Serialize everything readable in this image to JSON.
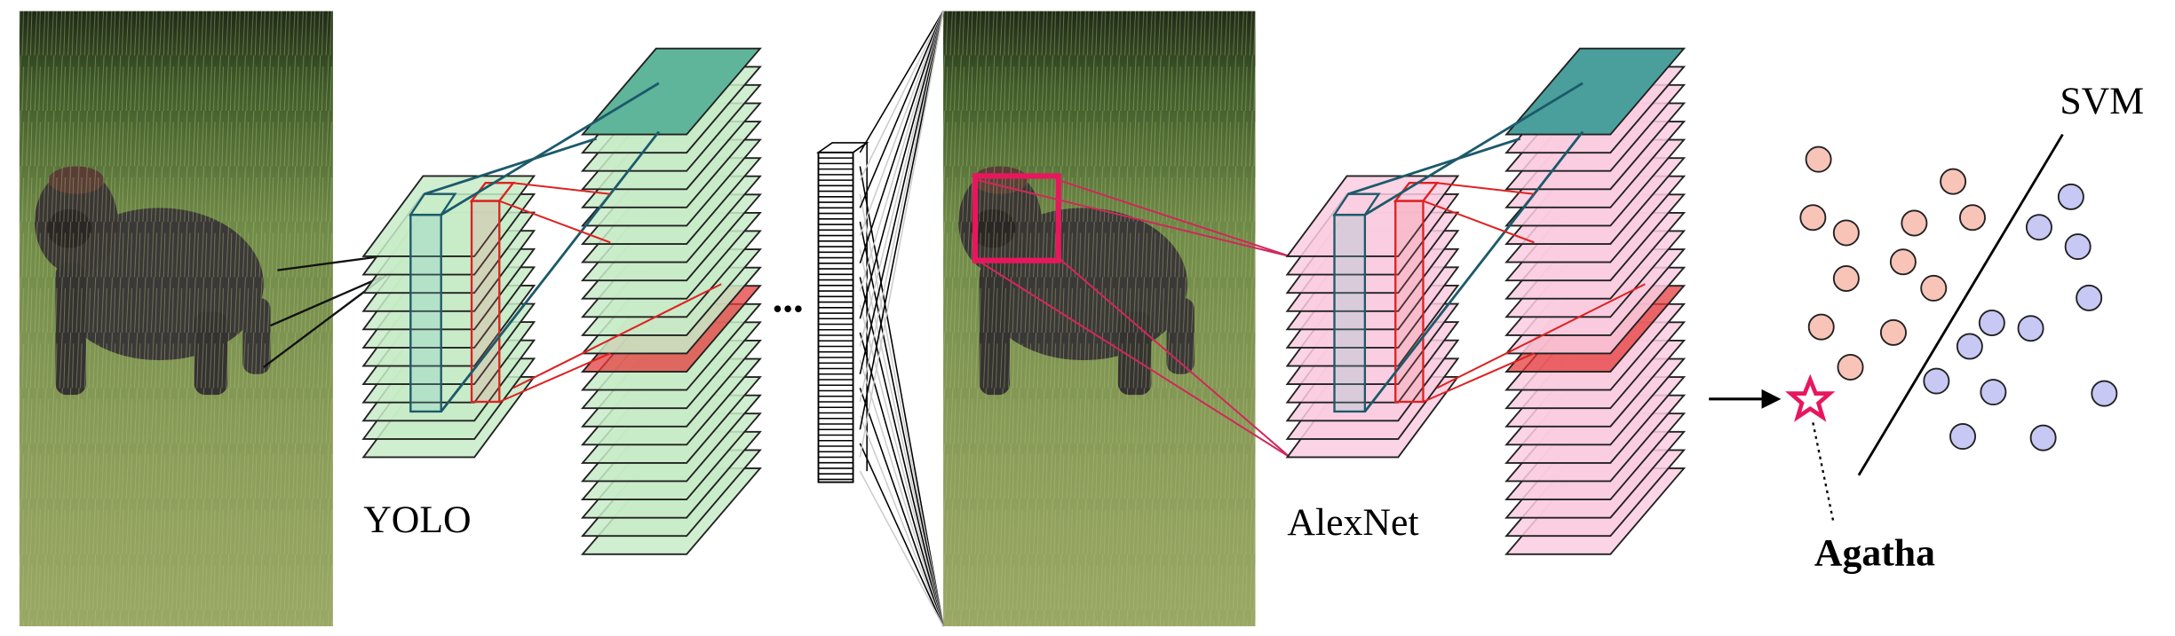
{
  "labels": {
    "yolo": "YOLO",
    "alexnet": "AlexNet",
    "svm": "SVM",
    "identity": "Agatha",
    "ellipsis": "..."
  }
}
